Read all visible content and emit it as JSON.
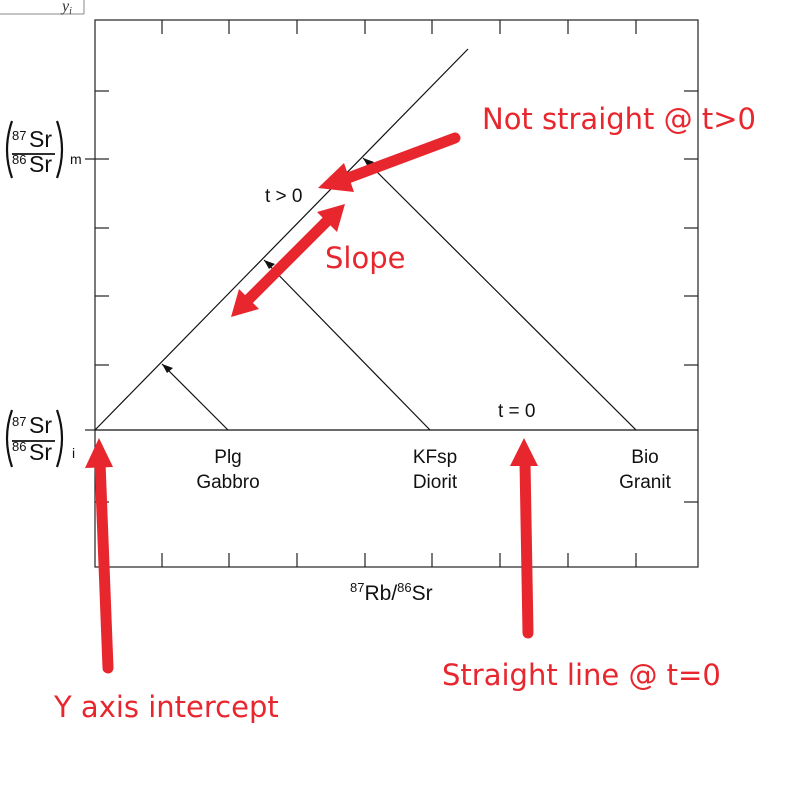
{
  "corner_label": "y_i",
  "y_label_measured": {
    "num_sup": "87",
    "num": "Sr",
    "den_sup": "86",
    "den": "Sr",
    "sub": "m"
  },
  "y_label_initial": {
    "num_sup": "87",
    "num": "Sr",
    "den_sup": "86",
    "den": "Sr",
    "sub": "i"
  },
  "x_label": {
    "sup1": "87",
    "main1": "Rb/",
    "sup2": "86",
    "main2": "Sr"
  },
  "labels": {
    "t_gt_0": "t > 0",
    "t_eq_0": "t = 0"
  },
  "minerals": [
    {
      "mineral": "Plg",
      "rock": "Gabbro"
    },
    {
      "mineral": "KFsp",
      "rock": "Diorit"
    },
    {
      "mineral": "Bio",
      "rock": "Granit"
    }
  ],
  "annotations": {
    "not_straight": "Not straight @ t>0",
    "slope": "Slope",
    "straight_line": "Straight line @ t=0",
    "y_intercept": "Y axis intercept"
  },
  "colors": {
    "annotation": "#e8262e",
    "ink": "#111111"
  }
}
